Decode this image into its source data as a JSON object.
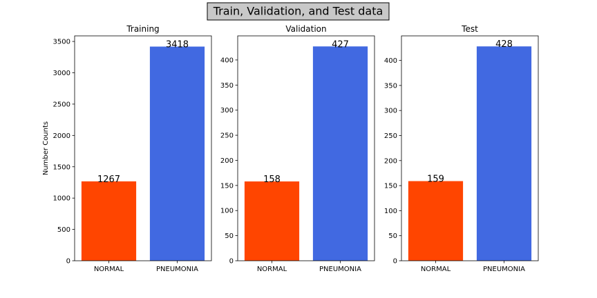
{
  "suptitle": "Train, Validation, and Test data",
  "colors": {
    "normal": "#ff4500",
    "pneumonia": "#4169e1"
  },
  "chart_data": [
    {
      "type": "bar",
      "title": "Training",
      "categories": [
        "NORMAL",
        "PNEUMONIA"
      ],
      "values": [
        1267,
        3418
      ],
      "ylabel": "Number Counts",
      "ylim": [
        0,
        3589
      ],
      "yticks": [
        0,
        500,
        1000,
        1500,
        2000,
        2500,
        3000,
        3500
      ],
      "grid": false
    },
    {
      "type": "bar",
      "title": "Validation",
      "categories": [
        "NORMAL",
        "PNEUMONIA"
      ],
      "values": [
        158,
        427
      ],
      "ylabel": "",
      "ylim": [
        0,
        448
      ],
      "yticks": [
        0,
        50,
        100,
        150,
        200,
        250,
        300,
        350,
        400
      ],
      "grid": false
    },
    {
      "type": "bar",
      "title": "Test",
      "categories": [
        "NORMAL",
        "PNEUMONIA"
      ],
      "values": [
        159,
        428
      ],
      "ylabel": "",
      "ylim": [
        0,
        449
      ],
      "yticks": [
        0,
        50,
        100,
        150,
        200,
        250,
        300,
        350,
        400
      ],
      "grid": false
    }
  ]
}
